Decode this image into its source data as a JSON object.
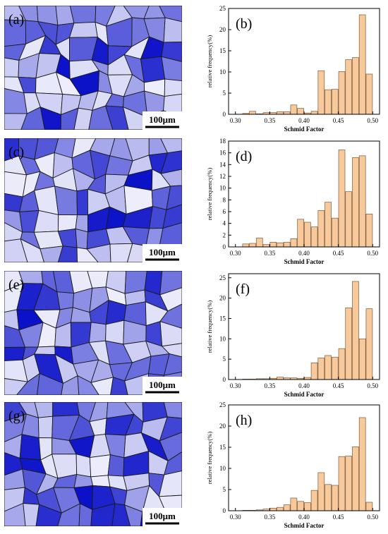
{
  "panel_labels": [
    "(a)",
    "(b)",
    "(c)",
    "(d)",
    "(e)",
    "(f)",
    "(g)",
    "(h)"
  ],
  "scale_bar_label": "100μm",
  "colors": {
    "bar_fill": "#f8c99b",
    "bar_stroke": "#7a5a3a",
    "grain_light": "#eeeefb",
    "grain_dark": "#0a10c8",
    "boundary": "#1a1a1a"
  },
  "chart_data": [
    {
      "type": "bar",
      "panel": "(b)",
      "xlabel": "Schmid Factor",
      "ylabel": "relative frequency(%)",
      "xlim": [
        0.29,
        0.51
      ],
      "ylim": [
        0,
        25
      ],
      "xticks": [
        "0.30",
        "0.35",
        "0.40",
        "0.45",
        "0.50"
      ],
      "yticks": [
        "0",
        "5",
        "10",
        "15",
        "20",
        "25"
      ],
      "x": [
        0.315,
        0.325,
        0.335,
        0.345,
        0.355,
        0.365,
        0.375,
        0.385,
        0.395,
        0.405,
        0.415,
        0.425,
        0.435,
        0.445,
        0.455,
        0.465,
        0.475,
        0.485,
        0.495
      ],
      "values": [
        0.2,
        0.7,
        0.1,
        0.4,
        0.4,
        0.6,
        0.6,
        2.2,
        1.4,
        0.3,
        0.7,
        10.3,
        5.8,
        5.9,
        10.1,
        12.9,
        13.4,
        23.5,
        9.5
      ]
    },
    {
      "type": "bar",
      "panel": "(d)",
      "xlabel": "Schmid Factor",
      "ylabel": "relative frequency(%)",
      "xlim": [
        0.29,
        0.51
      ],
      "ylim": [
        0,
        18
      ],
      "xticks": [
        "0.30",
        "0.35",
        "0.40",
        "0.45",
        "0.50"
      ],
      "yticks": [
        "0",
        "2",
        "4",
        "6",
        "8",
        "10",
        "12",
        "14",
        "16",
        "18"
      ],
      "x": [
        0.315,
        0.325,
        0.335,
        0.345,
        0.355,
        0.365,
        0.375,
        0.385,
        0.395,
        0.405,
        0.415,
        0.425,
        0.435,
        0.445,
        0.455,
        0.465,
        0.475,
        0.485,
        0.495
      ],
      "values": [
        0.5,
        0.6,
        1.5,
        0.4,
        0.8,
        0.7,
        0.8,
        1.4,
        4.7,
        4.2,
        3.4,
        6.2,
        7.6,
        4.9,
        16.5,
        9.4,
        15.2,
        15.5,
        5.6
      ]
    },
    {
      "type": "bar",
      "panel": "(f)",
      "xlabel": "Schmid Factor",
      "ylabel": "relative frequency(%)",
      "xlim": [
        0.29,
        0.51
      ],
      "ylim": [
        0,
        26
      ],
      "xticks": [
        "0.30",
        "0.35",
        "0.40",
        "0.45",
        "0.50"
      ],
      "yticks": [
        "0",
        "5",
        "10",
        "15",
        "20",
        "25"
      ],
      "x": [
        0.315,
        0.325,
        0.335,
        0.345,
        0.355,
        0.365,
        0.375,
        0.385,
        0.395,
        0.405,
        0.415,
        0.425,
        0.435,
        0.445,
        0.455,
        0.465,
        0.475,
        0.485,
        0.495
      ],
      "values": [
        0.1,
        0.1,
        0.2,
        0.2,
        0.3,
        0.6,
        0.4,
        0.4,
        0.3,
        0.5,
        4.1,
        5.3,
        5.9,
        5.5,
        7.6,
        17.6,
        24.1,
        10.0,
        17.4
      ]
    },
    {
      "type": "bar",
      "panel": "(h)",
      "xlabel": "Schmid Factor",
      "ylabel": "relative frequency(%)",
      "xlim": [
        0.29,
        0.51
      ],
      "ylim": [
        0,
        25
      ],
      "xticks": [
        "0.30",
        "0.35",
        "0.40",
        "0.45",
        "0.50"
      ],
      "yticks": [
        "0",
        "5",
        "10",
        "15",
        "20",
        "25"
      ],
      "x": [
        0.315,
        0.325,
        0.335,
        0.345,
        0.355,
        0.365,
        0.375,
        0.385,
        0.395,
        0.405,
        0.415,
        0.425,
        0.435,
        0.445,
        0.455,
        0.465,
        0.475,
        0.485,
        0.495
      ],
      "values": [
        0.1,
        0.1,
        0.2,
        0.4,
        0.6,
        0.8,
        1.4,
        3.0,
        2.2,
        1.9,
        4.8,
        9.0,
        6.2,
        6.0,
        12.8,
        12.9,
        15.1,
        22.0,
        2.0
      ]
    }
  ]
}
